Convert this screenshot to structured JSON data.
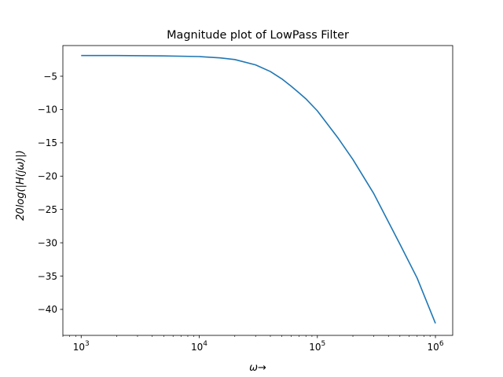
{
  "chart_data": {
    "type": "line",
    "title": "Magnitude plot of LowPass Filter",
    "xlabel": "ω→",
    "ylabel": "20log(|H(jω)|)",
    "xscale": "log",
    "xlim": [
      700,
      1400000
    ],
    "ylim": [
      -43.9,
      -0.4
    ],
    "x_ticks": [
      {
        "value": 1000,
        "base": "10",
        "exp": "3"
      },
      {
        "value": 10000,
        "base": "10",
        "exp": "4"
      },
      {
        "value": 100000,
        "base": "10",
        "exp": "5"
      },
      {
        "value": 1000000,
        "base": "10",
        "exp": "6"
      }
    ],
    "y_ticks": [
      -5,
      -10,
      -15,
      -20,
      -25,
      -30,
      -35,
      -40
    ],
    "y_tick_labels": [
      "−5",
      "−10",
      "−15",
      "−20",
      "−25",
      "−30",
      "−35",
      "−40"
    ],
    "grid": false,
    "series": [
      {
        "color": "#1f77b4",
        "x": [
          1000,
          2000,
          5000,
          10000,
          15000,
          20000,
          30000,
          40000,
          50000,
          60000,
          70000,
          80000,
          100000,
          150000,
          200000,
          300000,
          500000,
          700000,
          1000000
        ],
        "y": [
          -1.9,
          -1.9,
          -1.96,
          -2.05,
          -2.25,
          -2.5,
          -3.3,
          -4.3,
          -5.4,
          -6.5,
          -7.5,
          -8.4,
          -10.2,
          -14.3,
          -17.5,
          -22.6,
          -30.2,
          -35.3,
          -42.1
        ]
      }
    ]
  }
}
